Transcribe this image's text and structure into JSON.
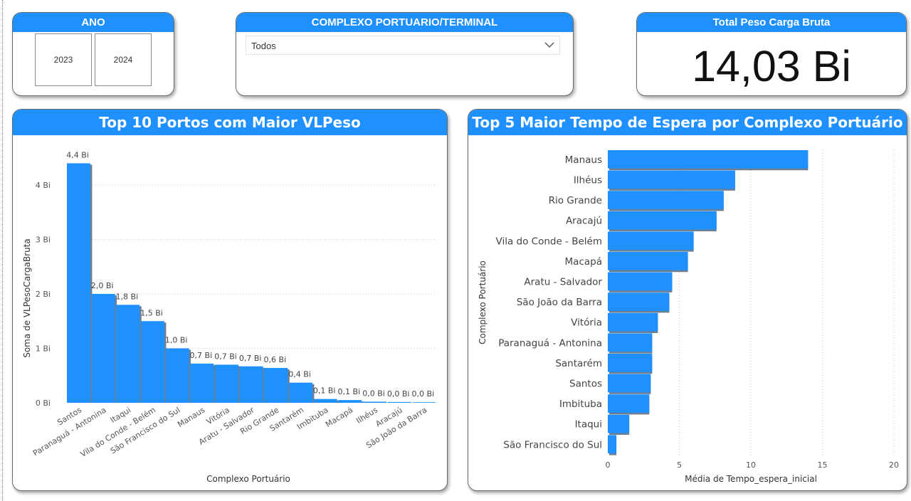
{
  "slicer_ano": {
    "title": "ANO",
    "options": [
      "2023",
      "2024"
    ]
  },
  "slicer_complexo": {
    "title": "COMPLEXO PORTUARIO/TERMINAL",
    "selected": "Todos",
    "icon": "chevron-down-icon"
  },
  "kpi": {
    "title": "Total Peso Carga Bruta",
    "value": "14,03 Bi"
  },
  "colors": {
    "accent": "#1e90ff",
    "bar_shadow": "#6e7f92"
  },
  "chart_data": [
    {
      "type": "bar",
      "title": "Top 10 Portos com Maior VLPeso",
      "xlabel": "Complexo Portuário",
      "ylabel": "Soma de VLPesoCargaBruta",
      "categories": [
        "Santos",
        "Paranaguá - Antonina",
        "Itaqui",
        "Vila do Conde - Belém",
        "São Francisco do Sul",
        "Manaus",
        "Vitória",
        "Aratu - Salvador",
        "Rio Grande",
        "Santarém",
        "Imbituba",
        "Macapá",
        "Ilhéus",
        "Aracajú",
        "São João da Barra"
      ],
      "values": [
        4.4,
        2.0,
        1.8,
        1.5,
        1.0,
        0.72,
        0.7,
        0.67,
        0.64,
        0.37,
        0.07,
        0.05,
        0.02,
        0.015,
        0.01
      ],
      "data_labels": [
        "4,4 Bi",
        "2,0 Bi",
        "1,8 Bi",
        "1,5 Bi",
        "1,0 Bi",
        "0,7 Bi",
        "0,7 Bi",
        "0,7 Bi",
        "0,6 Bi",
        "0,4 Bi",
        "0,1 Bi",
        "0,1 Bi",
        "0,0 Bi",
        "0,0 Bi",
        "0,0 Bi"
      ],
      "yticks": [
        0,
        1,
        2,
        3,
        4
      ],
      "ytick_labels": [
        "0 Bi",
        "1 Bi",
        "2 Bi",
        "3 Bi",
        "4 Bi"
      ],
      "ylim": [
        0,
        4.55
      ],
      "grid": true
    },
    {
      "type": "bar",
      "orientation": "horizontal",
      "title": "Top 5 Maior Tempo de Espera por Complexo Portuário",
      "xlabel": "Média de Tempo_espera_inicial",
      "ylabel": "Complexo Portuário",
      "categories": [
        "Manaus",
        "Ilhéus",
        "Rio Grande",
        "Aracajú",
        "Vila do Conde - Belém",
        "Macapá",
        "Aratu - Salvador",
        "São João da Barra",
        "Vitória",
        "Paranaguá - Antonina",
        "Santarém",
        "Santos",
        "Imbituba",
        "Itaqui",
        "São Francisco do Sul"
      ],
      "values": [
        14.0,
        8.9,
        8.1,
        7.6,
        6.0,
        5.6,
        4.5,
        4.3,
        3.5,
        3.1,
        3.1,
        3.0,
        2.9,
        1.5,
        0.6
      ],
      "xticks": [
        0,
        5,
        10,
        15,
        20
      ],
      "xtick_labels": [
        "0",
        "5",
        "10",
        "15",
        "20"
      ],
      "xlim": [
        0,
        20
      ],
      "grid": true
    }
  ]
}
